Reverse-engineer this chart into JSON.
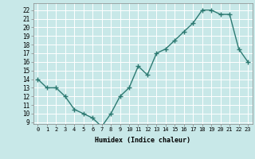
{
  "x": [
    0,
    1,
    2,
    3,
    4,
    5,
    6,
    7,
    8,
    9,
    10,
    11,
    12,
    13,
    14,
    15,
    16,
    17,
    18,
    19,
    20,
    21,
    22,
    23
  ],
  "y": [
    14,
    13,
    13,
    12,
    10.5,
    10,
    9.5,
    8.5,
    10,
    12,
    13,
    15.5,
    14.5,
    17,
    17.5,
    18.5,
    19.5,
    20.5,
    22,
    22,
    21.5,
    21.5,
    17.5,
    16
  ],
  "xlabel": "Humidex (Indice chaleur)",
  "ylim": [
    8.8,
    22.8
  ],
  "xlim": [
    -0.5,
    23.5
  ],
  "yticks": [
    9,
    10,
    11,
    12,
    13,
    14,
    15,
    16,
    17,
    18,
    19,
    20,
    21,
    22
  ],
  "xtick_labels": [
    "0",
    "1",
    "2",
    "3",
    "4",
    "5",
    "6",
    "7",
    "8",
    "9",
    "10",
    "11",
    "12",
    "13",
    "14",
    "15",
    "16",
    "17",
    "18",
    "19",
    "20",
    "21",
    "22",
    "23"
  ],
  "line_color": "#2d7a72",
  "bg_color": "#c8e8e8",
  "plot_bg_color": "#c8e8e8",
  "grid_color": "#ffffff",
  "marker": "+",
  "marker_size": 4,
  "linewidth": 1.0
}
